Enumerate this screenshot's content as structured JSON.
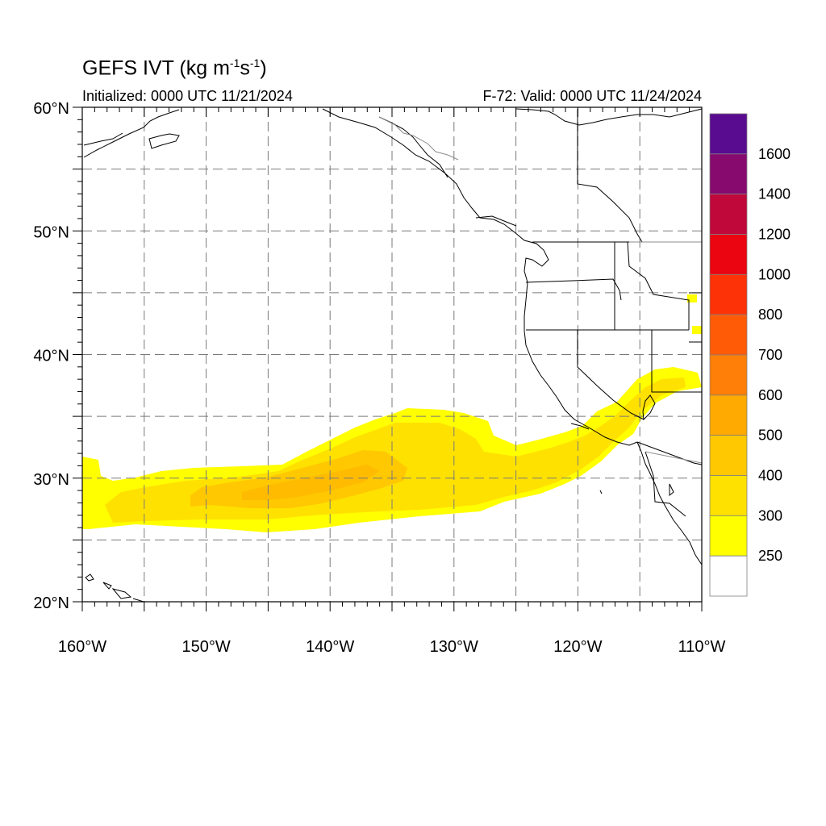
{
  "title": {
    "main": "GEFS IVT (kg m",
    "sup1": "-1",
    "mid": "s",
    "sup2": "-1",
    "end": ")"
  },
  "subtitle_left": "Initialized: 0000 UTC 11/21/2024",
  "subtitle_right": "F-72: Valid: 0000 UTC 11/24/2024",
  "map": {
    "lon_range": [
      -160,
      -110
    ],
    "lat_range": [
      20,
      60
    ],
    "grid": "dashed",
    "x_ticks": [
      {
        "lon": -160,
        "label": "160°W"
      },
      {
        "lon": -150,
        "label": "150°W"
      },
      {
        "lon": -140,
        "label": "140°W"
      },
      {
        "lon": -130,
        "label": "130°W"
      },
      {
        "lon": -120,
        "label": "120°W"
      },
      {
        "lon": -110,
        "label": "110°W"
      }
    ],
    "y_ticks": [
      {
        "lat": 60,
        "label": "60°N"
      },
      {
        "lat": 50,
        "label": "50°N"
      },
      {
        "lat": 40,
        "label": "40°N"
      },
      {
        "lat": 30,
        "label": "30°N"
      },
      {
        "lat": 20,
        "label": "20°N"
      }
    ]
  },
  "colorbar": {
    "labels": [
      "1600",
      "1400",
      "1200",
      "1000",
      "800",
      "700",
      "600",
      "500",
      "400",
      "300",
      "250"
    ],
    "colors": [
      "#5a0c91",
      "#870a6e",
      "#c0083b",
      "#ea0510",
      "#fe3207",
      "#ff5b07",
      "#ff7f08",
      "#ffaa00",
      "#ffc800",
      "#ffe100",
      "#ffff00",
      "#ffffff"
    ]
  },
  "ivt_field": {
    "units": "kg m-1 s-1",
    "cells": [
      {
        "lon": [
          -160,
          -152
        ],
        "lat": [
          26,
          30
        ],
        "level": 250
      },
      {
        "lon": [
          -152,
          -140
        ],
        "lat": [
          26,
          31
        ],
        "level": 250
      },
      {
        "lon": [
          -140,
          -130
        ],
        "lat": [
          26,
          35
        ],
        "level": 250
      },
      {
        "lon": [
          -130,
          -122
        ],
        "lat": [
          27,
          34
        ],
        "level": 250
      },
      {
        "lon": [
          -122,
          -116
        ],
        "lat": [
          29,
          35
        ],
        "level": 250
      },
      {
        "lon": [
          -116,
          -112
        ],
        "lat": [
          35,
          39
        ],
        "level": 250
      },
      {
        "lon": [
          -158,
          -150
        ],
        "lat": [
          27,
          29
        ],
        "level": 300
      },
      {
        "lon": [
          -150,
          -138
        ],
        "lat": [
          27,
          30
        ],
        "level": 300
      },
      {
        "lon": [
          -138,
          -126
        ],
        "lat": [
          27,
          33
        ],
        "level": 300
      },
      {
        "lon": [
          -126,
          -118
        ],
        "lat": [
          28,
          31
        ],
        "level": 300
      },
      {
        "lon": [
          -146,
          -140
        ],
        "lat": [
          28,
          30
        ],
        "level": 400
      },
      {
        "lon": [
          -140,
          -134
        ],
        "lat": [
          29,
          31
        ],
        "level": 400
      }
    ]
  }
}
